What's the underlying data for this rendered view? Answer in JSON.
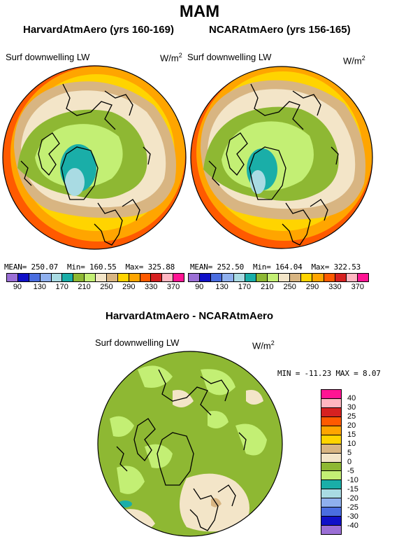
{
  "title": "MAM",
  "panels": [
    {
      "title": "HarvardAtmAero (yrs 160-169)",
      "variable": "Surf downwelling LW",
      "units_base": "W/m",
      "units_exp": "2",
      "stats": {
        "mean": "MEAN= 250.07",
        "min": "Min= 160.55",
        "max": "Max= 325.88"
      }
    },
    {
      "title": "NCARAtmAero (yrs 156-165)",
      "variable": "Surf downwelling LW",
      "units_base": "W/m",
      "units_exp": "2",
      "stats": {
        "mean": "MEAN= 252.50",
        "min": "Min= 164.04",
        "max": "Max= 322.53"
      }
    }
  ],
  "abs_colorbar": {
    "labels": [
      "90",
      "130",
      "170",
      "210",
      "250",
      "290",
      "330",
      "370"
    ],
    "colors": [
      "#9b6fd6",
      "#1010c8",
      "#4a6de0",
      "#8fb0ee",
      "#a9dbe3",
      "#1aaea8",
      "#8eb833",
      "#c3ef74",
      "#f3e5c8",
      "#d8b582",
      "#ffd400",
      "#ffa500",
      "#ff5a00",
      "#d62121",
      "#ffb6c1",
      "#ff1493"
    ]
  },
  "diff": {
    "title": "HarvardAtmAero - NCARAtmAero",
    "variable": "Surf downwelling LW",
    "units_base": "W/m",
    "units_exp": "2",
    "stats": "MIN = -11.23  MAX =   8.07"
  },
  "diff_colorbar": {
    "labels": [
      "40",
      "30",
      "25",
      "20",
      "15",
      "10",
      "5",
      "0",
      "-5",
      "-10",
      "-15",
      "-20",
      "-25",
      "-30",
      "-40"
    ],
    "colors": [
      "#ff1493",
      "#ffb6c1",
      "#d62121",
      "#ff5a00",
      "#ffa500",
      "#ffd400",
      "#d8b582",
      "#f3e5c8",
      "#8eb833",
      "#c3ef74",
      "#1aaea8",
      "#a9dbe3",
      "#8fb0ee",
      "#4a6de0",
      "#1010c8",
      "#9b6fd6"
    ]
  }
}
